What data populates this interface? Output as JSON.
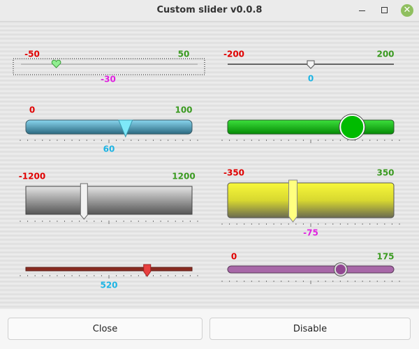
{
  "window": {
    "title": "Custom slider v0.0.8"
  },
  "sliders": [
    {
      "min": -50,
      "max": 50,
      "value": -30
    },
    {
      "min": -200,
      "max": 200,
      "value": 0
    },
    {
      "min": 0,
      "max": 100,
      "value": 60
    },
    {
      "min": -1200,
      "max": 1200
    },
    {
      "min": -350,
      "max": 350,
      "value": -75
    },
    {
      "value": 520
    },
    {
      "min": 0,
      "max": 175
    }
  ],
  "buttons": [
    "Close",
    "Disable"
  ]
}
